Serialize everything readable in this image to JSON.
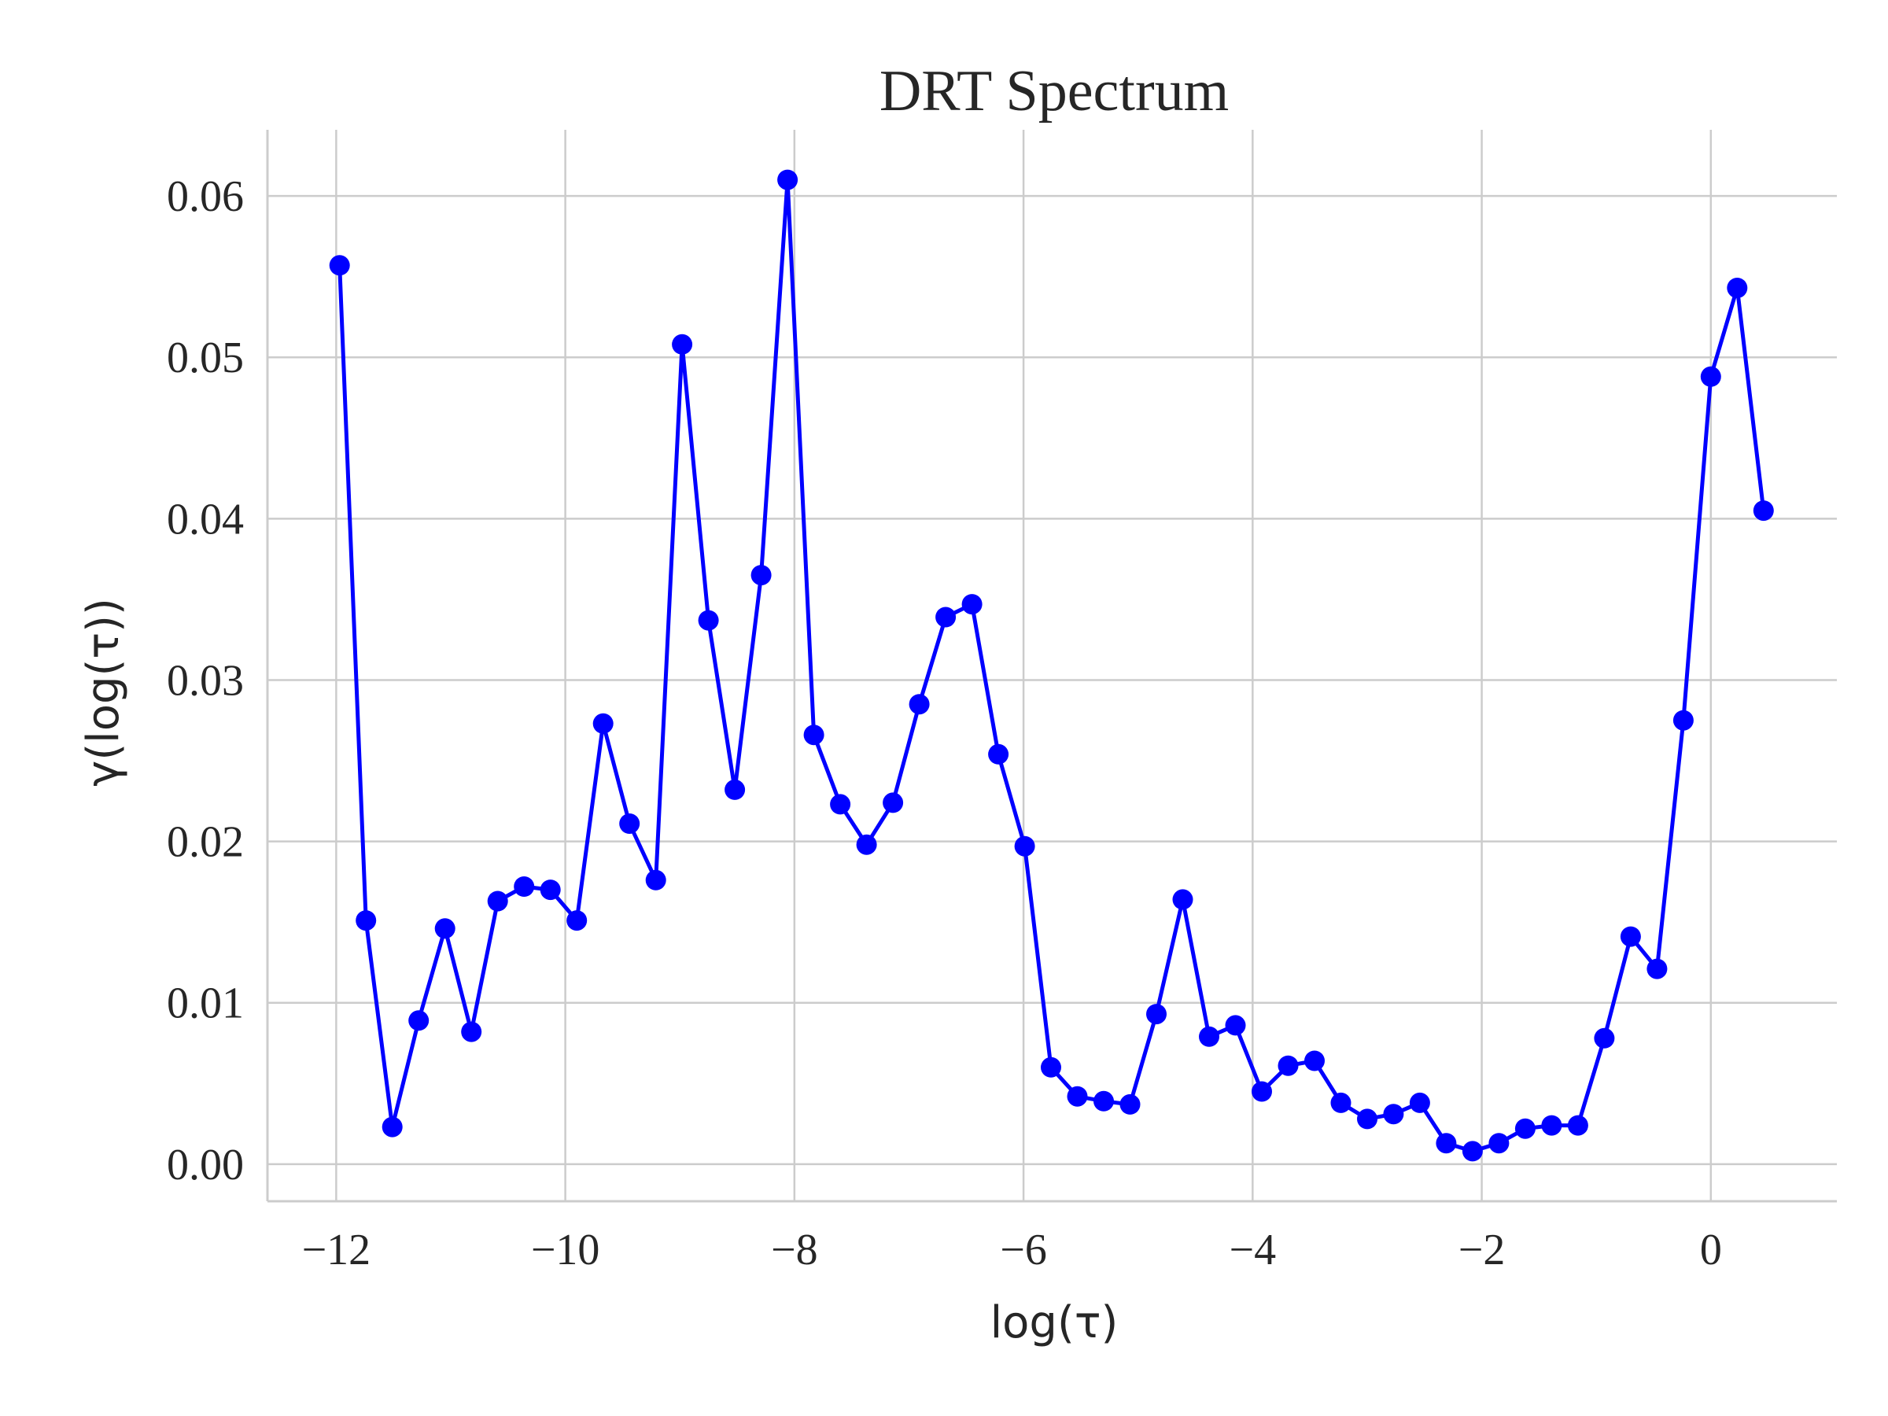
{
  "chart_data": {
    "type": "line",
    "title": "DRT Spectrum",
    "xlabel": "log(τ)",
    "ylabel": "γ(log(τ))",
    "xlim": [
      -12.6,
      1.1
    ],
    "ylim": [
      -0.0023,
      0.0641
    ],
    "xticks": [
      -12,
      -10,
      -8,
      -6,
      -4,
      -2,
      0
    ],
    "xtick_labels": [
      "−12",
      "−10",
      "−8",
      "−6",
      "−4",
      "−2",
      "0"
    ],
    "yticks": [
      0.0,
      0.01,
      0.02,
      0.03,
      0.04,
      0.05,
      0.06
    ],
    "ytick_labels": [
      "0.00",
      "0.01",
      "0.02",
      "0.03",
      "0.04",
      "0.05",
      "0.06"
    ],
    "grid": true,
    "colors": {
      "series": "#0000ff",
      "grid": "#cccccc",
      "text": "#262626"
    },
    "series": [
      {
        "x": [
          -11.97,
          -11.74,
          -11.51,
          -11.28,
          -11.05,
          -10.82,
          -10.59,
          -10.36,
          -10.13,
          -9.9,
          -9.67,
          -9.44,
          -9.21,
          -8.98,
          -8.75,
          -8.52,
          -8.29,
          -8.06,
          -7.83,
          -7.6,
          -7.37,
          -7.14,
          -6.91,
          -6.68,
          -6.45,
          -6.22,
          -5.99,
          -5.76,
          -5.53,
          -5.3,
          -5.07,
          -4.84,
          -4.61,
          -4.38,
          -4.15,
          -3.92,
          -3.69,
          -3.46,
          -3.23,
          -3.0,
          -2.77,
          -2.54,
          -2.31,
          -2.08,
          -1.85,
          -1.62,
          -1.39,
          -1.16,
          -0.93,
          -0.7,
          -0.47,
          -0.24,
          0.0,
          0.23,
          0.46
        ],
        "y": [
          0.0557,
          0.0151,
          0.0023,
          0.0089,
          0.0146,
          0.0082,
          0.0163,
          0.0172,
          0.017,
          0.0151,
          0.0273,
          0.0211,
          0.0176,
          0.0508,
          0.0337,
          0.0232,
          0.0365,
          0.061,
          0.0266,
          0.0223,
          0.0198,
          0.0224,
          0.0285,
          0.0339,
          0.0347,
          0.0254,
          0.0197,
          0.006,
          0.0042,
          0.0039,
          0.0037,
          0.0093,
          0.0164,
          0.0079,
          0.0086,
          0.0045,
          0.0061,
          0.0064,
          0.0038,
          0.0028,
          0.0031,
          0.0038,
          0.0013,
          0.0008,
          0.0013,
          0.0022,
          0.0024,
          0.0024,
          0.0078,
          0.0141,
          0.0121,
          0.0275,
          0.0488,
          0.0543,
          0.0405
        ]
      }
    ]
  }
}
